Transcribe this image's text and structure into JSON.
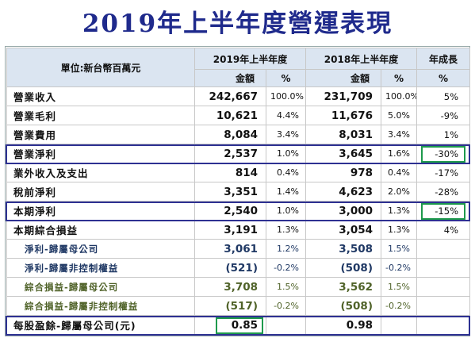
{
  "title": "2019年上半年度營運表現",
  "table": {
    "unit": "單位:新台幣百萬元",
    "groups": [
      "2019年上半年度",
      "2018年上半年度",
      "年成長"
    ],
    "subheaders": [
      "金額",
      "%",
      "金額",
      "%",
      "%"
    ],
    "rows": [
      [
        "營業收入",
        "242,667",
        "100.0%",
        "231,709",
        "100.0%",
        "5%"
      ],
      [
        "營業毛利",
        "10,621",
        "4.4%",
        "11,676",
        "5.0%",
        "-9%"
      ],
      [
        "營業費用",
        "8,084",
        "3.4%",
        "8,031",
        "3.4%",
        "1%"
      ],
      [
        "營業淨利",
        "2,537",
        "1.0%",
        "3,645",
        "1.6%",
        "-30%"
      ],
      [
        "業外收入及支出",
        "814",
        "0.4%",
        "978",
        "0.4%",
        "-17%"
      ],
      [
        "稅前淨利",
        "3,351",
        "1.4%",
        "4,623",
        "2.0%",
        "-28%"
      ],
      [
        "本期淨利",
        "2,540",
        "1.0%",
        "3,000",
        "1.3%",
        "-15%"
      ],
      [
        "本期綜合損益",
        "3,191",
        "1.3%",
        "3,054",
        "1.3%",
        "4%"
      ],
      [
        "淨利-歸屬母公司",
        "3,061",
        "1.2%",
        "3,508",
        "1.5%",
        null
      ],
      [
        "淨利-歸屬非控制權益",
        "(521)",
        "-0.2%",
        "(508)",
        "-0.2%",
        null
      ],
      [
        "綜合損益-歸屬母公司",
        "3,708",
        "1.5%",
        "3,562",
        "1.5%",
        null
      ],
      [
        "綜合損益-歸屬非控制權益",
        "(517)",
        "-0.2%",
        "(508)",
        "-0.2%",
        null
      ],
      [
        "每股盈餘-歸屬母公司(元)",
        "0.85",
        null,
        "0.98",
        null,
        null
      ]
    ]
  }
}
